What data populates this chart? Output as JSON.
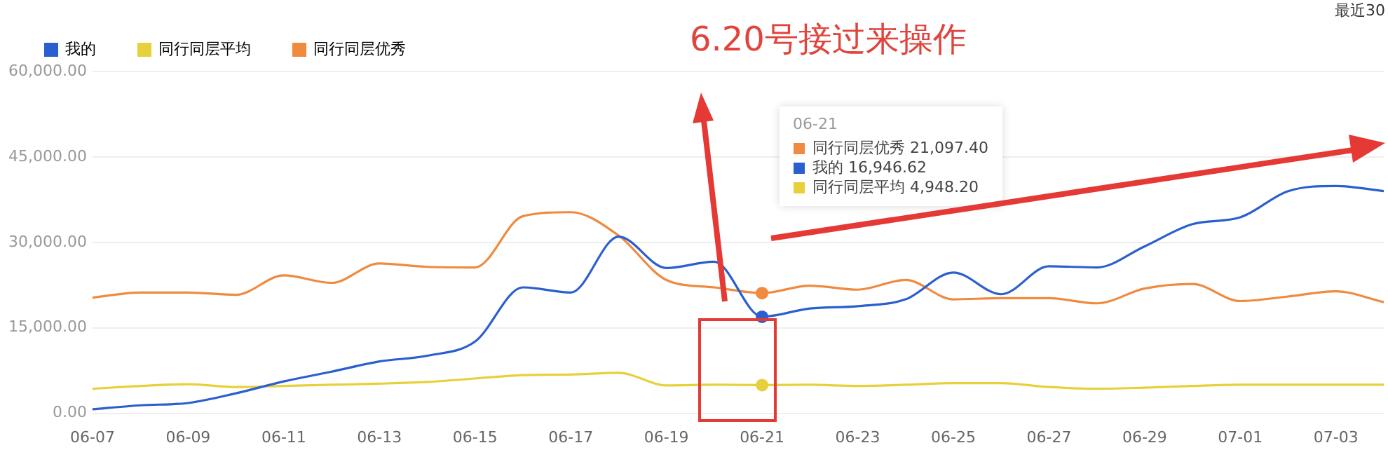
{
  "chart_data": {
    "type": "line",
    "title": "6.20号接过来操作",
    "categories": [
      "06-07",
      null,
      "06-09",
      null,
      "06-11",
      null,
      "06-13",
      null,
      "06-15",
      null,
      "06-17",
      null,
      "06-19",
      null,
      "06-21",
      null,
      "06-23",
      null,
      "06-25",
      null,
      "06-27",
      null,
      "06-29",
      null,
      "07-01",
      null,
      "07-03",
      null
    ],
    "series": [
      {
        "name": "我的",
        "color": "#2a5fcf",
        "values": [
          700,
          1400,
          1800,
          3500,
          5600,
          7300,
          9100,
          10100,
          12600,
          22100,
          21200,
          31000,
          25500,
          26600,
          16946.62,
          18400,
          18800,
          20000,
          24700,
          20900,
          25800,
          25600,
          29300,
          33200,
          34400,
          39000,
          39900,
          39000
        ]
      },
      {
        "name": "同行同层平均",
        "color": "#e8d03a",
        "values": [
          4300,
          4800,
          5100,
          4600,
          4800,
          5000,
          5200,
          5500,
          6100,
          6700,
          6800,
          7100,
          4900,
          5000,
          4948.2,
          5000,
          4800,
          5000,
          5300,
          5300,
          4600,
          4300,
          4500,
          4800,
          5000,
          5000,
          5000,
          5000
        ]
      },
      {
        "name": "同行同层优秀",
        "color": "#f08a3e",
        "values": [
          20300,
          21200,
          21200,
          20800,
          24200,
          22900,
          26300,
          25700,
          25600,
          34600,
          35300,
          31200,
          23400,
          22100,
          21097.4,
          22400,
          21700,
          23400,
          20000,
          20200,
          20200,
          19300,
          21900,
          22700,
          19700,
          20500,
          21400,
          19500
        ]
      }
    ],
    "ylim": [
      0,
      60000
    ],
    "yticks": [
      {
        "value": 0,
        "label": "0.00"
      },
      {
        "value": 15000,
        "label": "15,000.00"
      },
      {
        "value": 30000,
        "label": "30,000.00"
      },
      {
        "value": 45000,
        "label": "45,000.00"
      },
      {
        "value": 60000,
        "label": "60,000.00"
      }
    ],
    "grid": "y",
    "legend": "top left",
    "marker": "none",
    "line_style": "solid",
    "annotations": [
      "最近30",
      "06-21",
      "同行同层优秀 21,097.40",
      "我的 16,946.62",
      "同行同层平均 4,948.20"
    ]
  }
}
